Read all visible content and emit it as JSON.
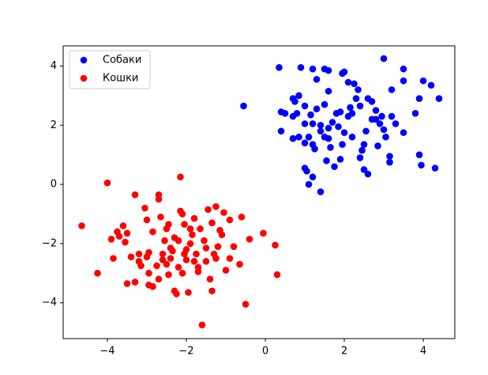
{
  "chart_data": {
    "type": "scatter",
    "xlim": [
      -5.12,
      4.8
    ],
    "ylim": [
      -5.21,
      4.68
    ],
    "xticks": [
      {
        "value": -4,
        "label": "−4"
      },
      {
        "value": -2,
        "label": "−2"
      },
      0,
      2,
      4
    ],
    "yticks": [
      {
        "value": -4,
        "label": "−4"
      },
      {
        "value": -2,
        "label": "−2"
      },
      0,
      2,
      4
    ],
    "legend": "upper left",
    "series": [
      {
        "name": "Собаки",
        "color": "#0000ff",
        "x": [
          -0.55,
          0.35,
          0.4,
          0.5,
          0.4,
          0.7,
          0.75,
          0.8,
          0.7,
          0.85,
          0.9,
          1.0,
          1.0,
          0.7,
          0.85,
          1.0,
          1.1,
          1.2,
          1.2,
          1.3,
          1.25,
          1.4,
          1.4,
          1.5,
          1.5,
          1.6,
          1.6,
          1.65,
          1.7,
          1.75,
          1.55,
          1.0,
          1.05,
          1.2,
          1.1,
          1.4,
          1.2,
          1.3,
          1.5,
          1.6,
          1.6,
          1.8,
          1.9,
          1.95,
          2.0,
          2.0,
          1.9,
          1.95,
          2.1,
          2.15,
          2.2,
          2.1,
          2.25,
          2.2,
          2.3,
          2.4,
          2.45,
          2.5,
          2.4,
          2.5,
          2.6,
          2.55,
          2.6,
          2.7,
          2.7,
          2.8,
          2.85,
          2.9,
          2.95,
          3.0,
          3.0,
          3.05,
          3.15,
          3.15,
          3.2,
          3.2,
          3.3,
          3.5,
          3.5,
          3.5,
          3.8,
          3.9,
          3.9,
          3.95,
          4.0,
          4.2,
          4.3,
          4.4,
          2.8,
          1.85,
          2.35,
          1.15
        ],
        "values": [
          2.65,
          3.95,
          2.45,
          2.4,
          1.8,
          2.9,
          2.8,
          2.4,
          2.3,
          3.0,
          3.95,
          2.65,
          2.05,
          1.55,
          1.6,
          1.4,
          1.6,
          1.35,
          2.05,
          2.55,
          1.2,
          2.0,
          1.8,
          1.6,
          2.7,
          1.9,
          1.55,
          1.25,
          2.1,
          0.6,
          0.8,
          0.55,
          0.45,
          0.25,
          0.0,
          -0.25,
          3.9,
          3.55,
          3.9,
          3.85,
          3.15,
          2.4,
          2.45,
          3.75,
          3.8,
          1.75,
          0.85,
          1.35,
          2.3,
          2.6,
          2.4,
          3.45,
          3.4,
          1.6,
          2.9,
          2.65,
          1.15,
          1.35,
          0.9,
          0.5,
          0.35,
          1.8,
          2.9,
          2.8,
          2.2,
          2.2,
          1.3,
          2.05,
          2.3,
          4.25,
          1.85,
          1.6,
          0.75,
          0.95,
          2.3,
          3.2,
          2.05,
          1.75,
          3.9,
          3.5,
          2.4,
          2.9,
          1.0,
          0.65,
          3.5,
          3.35,
          0.55,
          2.9,
          2.5,
          1.95,
          3.2,
          2.35
        ]
      },
      {
        "name": "Кошки",
        "color": "#ff0000",
        "x": [
          -4.65,
          -4.25,
          -4.0,
          -3.9,
          -3.85,
          -3.75,
          -3.7,
          -3.6,
          -3.55,
          -3.5,
          -3.4,
          -3.3,
          -3.3,
          -3.2,
          -3.2,
          -3.15,
          -3.05,
          -3.0,
          -3.0,
          -2.95,
          -2.95,
          -2.85,
          -2.85,
          -2.75,
          -2.7,
          -2.7,
          -2.7,
          -2.65,
          -2.6,
          -2.6,
          -2.55,
          -2.5,
          -2.5,
          -2.45,
          -2.45,
          -2.4,
          -2.35,
          -2.3,
          -2.3,
          -2.25,
          -2.2,
          -2.2,
          -2.15,
          -2.15,
          -2.1,
          -2.05,
          -2.05,
          -2.0,
          -2.0,
          -1.95,
          -1.9,
          -1.9,
          -1.85,
          -1.8,
          -1.8,
          -1.75,
          -1.7,
          -1.7,
          -1.65,
          -1.6,
          -1.55,
          -1.5,
          -1.5,
          -1.45,
          -1.4,
          -1.35,
          -1.35,
          -1.3,
          -1.25,
          -1.25,
          -1.2,
          -1.15,
          -1.1,
          -1.05,
          -1.0,
          -0.9,
          -0.9,
          -0.8,
          -0.65,
          -0.6,
          -0.5,
          -0.4,
          -0.05,
          0.25,
          0.3,
          -2.95,
          -2.4,
          -2.1,
          -3.5
        ],
        "values": [
          -1.4,
          -3.0,
          0.05,
          -1.85,
          -2.5,
          -1.6,
          -1.75,
          -1.4,
          -1.95,
          -1.65,
          -2.45,
          -0.35,
          -3.3,
          -2.35,
          -2.6,
          -2.75,
          -0.8,
          -1.2,
          -2.45,
          -3.4,
          -2.3,
          -1.6,
          -3.45,
          -2.75,
          -0.35,
          -0.5,
          -3.2,
          -1.1,
          -2.35,
          -2.55,
          -1.9,
          -1.5,
          -2.7,
          -3.05,
          -1.35,
          -2.15,
          -2.25,
          -1.8,
          -3.6,
          -3.7,
          -1.9,
          -2.8,
          0.25,
          -0.9,
          -1.0,
          -1.35,
          -2.35,
          -2.2,
          -2.55,
          -3.65,
          -1.5,
          -2.0,
          -1.7,
          -1.15,
          -2.6,
          -2.35,
          -2.95,
          -2.8,
          -1.5,
          -4.75,
          -1.9,
          -2.15,
          -2.6,
          -0.85,
          -3.2,
          -3.6,
          -1.3,
          -2.35,
          -0.75,
          -2.5,
          -2.1,
          -1.55,
          -1.7,
          -0.95,
          -2.9,
          -1.2,
          -2.5,
          -2.1,
          -2.7,
          -1.1,
          -4.05,
          -1.85,
          -1.65,
          -2.05,
          -3.05,
          -3.0,
          -2.5,
          -3.0,
          -3.35
        ]
      }
    ]
  }
}
